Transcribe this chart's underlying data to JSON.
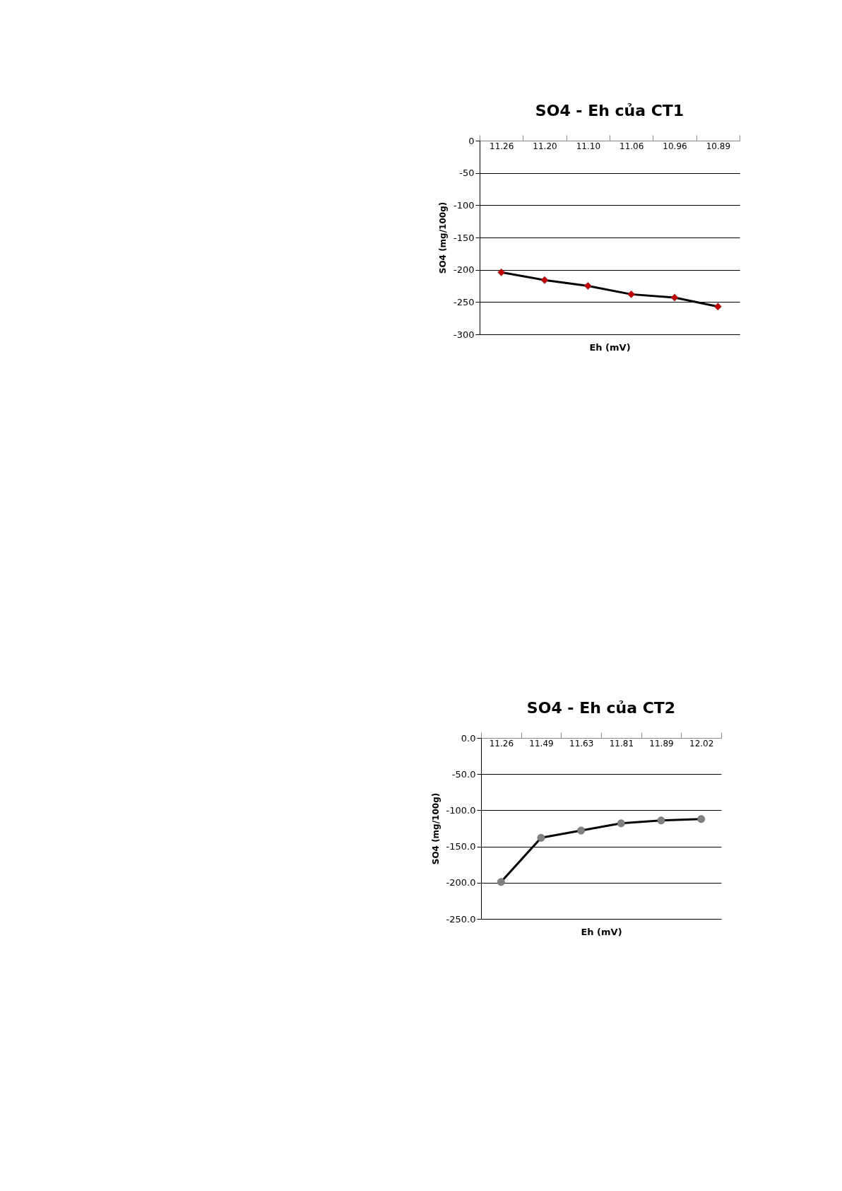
{
  "chart_data": [
    {
      "type": "line",
      "title": "SO4 - Eh của CT1",
      "xlabel": "Eh (mV)",
      "ylabel": "SO4 (mg/100g)",
      "categories": [
        "11.26",
        "11.20",
        "11.10",
        "11.06",
        "10.96",
        "10.89"
      ],
      "series": [
        {
          "color": "#000000",
          "colors": [
            "#c00000",
            "#c00000",
            "#c00000",
            "#c00000",
            "#c00000",
            "#c00000"
          ],
          "values": [
            -204,
            -216,
            -225,
            -238,
            -243,
            -257
          ]
        }
      ],
      "ylim": [
        -300,
        0
      ],
      "yticks": [
        -300,
        -250,
        -200,
        -150,
        -100,
        -50,
        0
      ],
      "grid": "y",
      "marker": "diamond",
      "line_style": "solid"
    },
    {
      "type": "line",
      "title": "SO4 - Eh của CT2",
      "xlabel": "Eh (mV)",
      "ylabel": "SO4 (mg/100g)",
      "categories": [
        "11.26",
        "11.49",
        "11.63",
        "11.81",
        "11.89",
        "12.02"
      ],
      "series": [
        {
          "color": "#000000",
          "colors": [
            "#808080",
            "#808080",
            "#808080",
            "#808080",
            "#808080",
            "#808080"
          ],
          "values": [
            -199,
            -138,
            -128,
            -118,
            -114,
            -112
          ]
        }
      ],
      "ylim": [
        -250,
        0
      ],
      "yticks": [
        {
          "value": -250,
          "label": "-250.0"
        },
        {
          "value": -200,
          "label": "-200.0"
        },
        {
          "value": -150,
          "label": "-150.0"
        },
        {
          "value": -100,
          "label": "-100.0"
        },
        {
          "value": -50,
          "label": "-50.0"
        },
        {
          "value": 0,
          "label": "0.0"
        }
      ],
      "grid": "y",
      "marker": "circle",
      "line_style": "solid"
    }
  ]
}
